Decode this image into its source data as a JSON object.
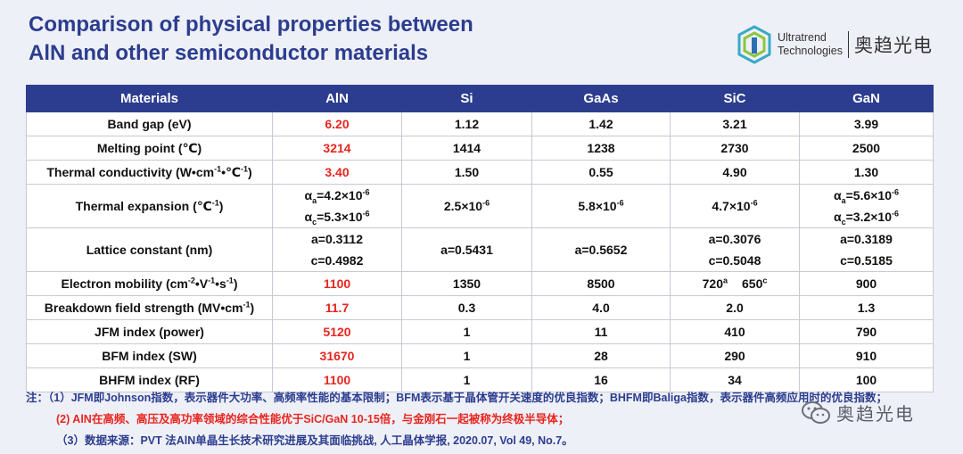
{
  "title": {
    "line1": "Comparison of physical properties between",
    "line2": "AlN and other semiconductor materials"
  },
  "logo": {
    "en_line1": "Ultratrend",
    "en_line2": "Technologies",
    "cn": "奥趋光电"
  },
  "table": {
    "headers": [
      "Materials",
      "AlN",
      "Si",
      "GaAs",
      "SiC",
      "GaN"
    ],
    "rows": [
      {
        "property": "Band gap (eV)",
        "aln": "6.20",
        "si": "1.12",
        "gaas": "1.42",
        "sic": "3.21",
        "gan": "3.99"
      },
      {
        "property": "Melting point (℃)",
        "aln": "3214",
        "si": "1414",
        "gaas": "1238",
        "sic": "2730",
        "gan": "2500"
      },
      {
        "property_pre": "Thermal conductivity (W•cm",
        "property_sup1": "-1",
        "property_mid": "•℃",
        "property_sup2": "-1",
        "property_post": ")",
        "aln": "3.40",
        "si": "1.50",
        "gaas": "0.55",
        "sic": "4.90",
        "gan": "1.30"
      },
      {
        "property_pre": "Thermal expansion (℃",
        "property_sup": "-1",
        "property_post": ")",
        "aln_a_pre": "α",
        "aln_a_sub": "a",
        "aln_a_val": "=4.2×10",
        "aln_a_exp": "-6",
        "aln_c_pre": "α",
        "aln_c_sub": "c",
        "aln_c_val": "=5.3×10",
        "aln_c_exp": "-6",
        "si_val": "2.5×10",
        "si_exp": "-6",
        "gaas_val": "5.8×10",
        "gaas_exp": "-6",
        "sic_val": "4.7×10",
        "sic_exp": "-6",
        "gan_a_pre": "α",
        "gan_a_sub": "a",
        "gan_a_val": "=5.6×10",
        "gan_a_exp": "-6",
        "gan_c_pre": "α",
        "gan_c_sub": "c",
        "gan_c_val": "=3.2×10",
        "gan_c_exp": "-6"
      },
      {
        "property": "Lattice constant (nm)",
        "aln_a": "a=0.3112",
        "aln_c": "c=0.4982",
        "si": "a=0.5431",
        "gaas": "a=0.5652",
        "sic_a": "a=0.3076",
        "sic_c": "c=0.5048",
        "gan_a": "a=0.3189",
        "gan_c": "c=0.5185"
      },
      {
        "property_pre": "Electron mobility (cm",
        "property_sup1": "-2",
        "property_mid1": "•V",
        "property_sup2": "-1",
        "property_mid2": "•s",
        "property_sup3": "-1",
        "property_post": ")",
        "aln": "1100",
        "si": "1350",
        "gaas": "8500",
        "sic_v1": "720",
        "sic_s1": "a",
        "sic_v2": "650",
        "sic_s2": "c",
        "gan": "900"
      },
      {
        "property_pre": "Breakdown field strength (MV•cm",
        "property_sup": "-1",
        "property_post": ")",
        "aln": "11.7",
        "si": "0.3",
        "gaas": "4.0",
        "sic": "2.0",
        "gan": "1.3"
      },
      {
        "property": "JFM index (power)",
        "aln": "5120",
        "si": "1",
        "gaas": "11",
        "sic": "410",
        "gan": "790"
      },
      {
        "property": "BFM index (SW)",
        "aln": "31670",
        "si": "1",
        "gaas": "28",
        "sic": "290",
        "gan": "910"
      },
      {
        "property": "BHFM index (RF)",
        "aln": "1100",
        "si": "1",
        "gaas": "16",
        "sic": "34",
        "gan": "100"
      }
    ]
  },
  "notes": {
    "n1": "注：（1）JFM即Johnson指数，表示器件大功率、高频率性能的基本限制；BFM表示基于晶体管开关速度的优良指数；BHFM即Baliga指数，表示器件高频应用时的优良指数；",
    "n2": "(2) AlN在高频、高压及高功率领域的综合性能优于SiC/GaN 10-15倍，与金刚石一起被称为终极半导体；",
    "n3": "（3）数据来源：PVT 法AlN单晶生长技术研究进展及其面临挑战, 人工晶体学报, 2020.07, Vol 49, No.7。"
  },
  "watermark": {
    "text": "奥趋光电"
  },
  "colors": {
    "header_bg": "#2c3d8f",
    "highlight": "#e8251f",
    "title": "#2c3d8f"
  }
}
